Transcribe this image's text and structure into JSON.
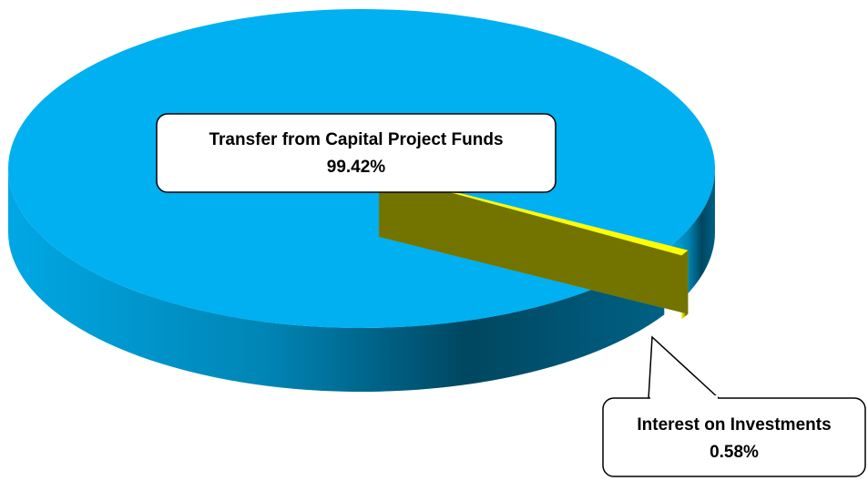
{
  "chart_data": {
    "type": "pie",
    "categories": [
      "Transfer from Capital Project Funds",
      "Interest on Investments"
    ],
    "values": [
      99.42,
      0.58
    ],
    "value_labels": [
      "99.42%",
      "0.58%"
    ],
    "colors": [
      "#00b0f0",
      "#ffff00"
    ]
  }
}
